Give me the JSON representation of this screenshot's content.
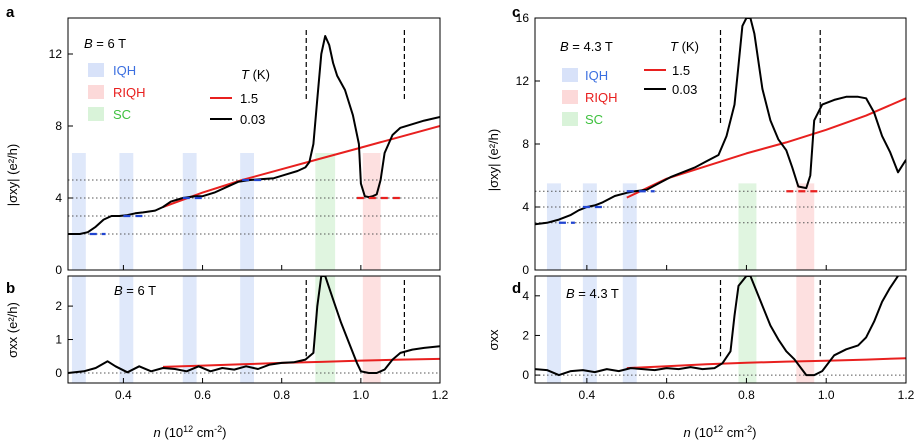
{
  "colors": {
    "iqh": "#3b6fe0",
    "riqh": "#f04040",
    "sc": "#3fc13f",
    "line_hot": "#e8201f",
    "line_cold": "#000000",
    "plateau_iqh": "#2044d0",
    "plateau_riqh": "#e8201f"
  },
  "legend": {
    "iqh": "IQH",
    "riqh": "RIQH",
    "sc": "SC",
    "temp_title_pre": "T",
    "temp_title_post": " (K)",
    "hot": "1.5",
    "cold": "0.03"
  },
  "shared": {
    "xlabel_pre": "n",
    "xlabel_unit": " (10",
    "xlabel_exp": "12",
    "xlabel_unit2": " cm",
    "xlabel_exp2": "-2",
    "xlabel_close": ")"
  },
  "chart_data": [
    {
      "id": "a",
      "panel_label": "a",
      "type": "line",
      "field_pre": "B",
      "field_value": " = 6 T",
      "ylabel": "|σxy| (e²/h)",
      "xlim": [
        0.26,
        1.2
      ],
      "ylim": [
        0,
        14
      ],
      "xticks": [
        "0.4",
        "0.6",
        "0.8",
        "1.0",
        "1.2"
      ],
      "xtick_values": [
        0.4,
        0.6,
        0.8,
        1.0,
        1.2
      ],
      "yticks": [
        "0",
        "4",
        "8",
        "12"
      ],
      "ytick_values": [
        0,
        4,
        8,
        12
      ],
      "dotted_lines": [
        2,
        3,
        4,
        5
      ],
      "dashed_x": [
        0.862,
        1.11
      ],
      "bands": [
        {
          "kind": "iqh",
          "x0": 0.27,
          "x1": 0.305
        },
        {
          "kind": "iqh",
          "x0": 0.39,
          "x1": 0.425
        },
        {
          "kind": "iqh",
          "x0": 0.55,
          "x1": 0.585
        },
        {
          "kind": "iqh",
          "x0": 0.695,
          "x1": 0.73
        },
        {
          "kind": "sc",
          "x0": 0.885,
          "x1": 0.935
        },
        {
          "kind": "riqh",
          "x0": 1.005,
          "x1": 1.05
        }
      ],
      "band_top": 6.5,
      "plateaus": [
        {
          "kind": "iqh",
          "x0": 0.315,
          "x1": 0.355,
          "y": 2
        },
        {
          "kind": "iqh",
          "x0": 0.4,
          "x1": 0.45,
          "y": 3
        },
        {
          "kind": "iqh",
          "x0": 0.55,
          "x1": 0.6,
          "y": 4
        },
        {
          "kind": "iqh",
          "x0": 0.7,
          "x1": 0.75,
          "y": 5
        },
        {
          "kind": "riqh",
          "x0": 0.99,
          "x1": 1.1,
          "y": 4
        }
      ],
      "series": [
        {
          "name": "1.5",
          "color": "hot",
          "x": [
            0.5,
            0.6,
            0.7,
            0.8,
            0.9,
            1.0,
            1.1,
            1.2
          ],
          "y": [
            3.5,
            4.3,
            5.0,
            5.6,
            6.2,
            6.8,
            7.4,
            8.0
          ]
        },
        {
          "name": "0.03",
          "color": "cold",
          "x": [
            0.26,
            0.29,
            0.31,
            0.33,
            0.35,
            0.37,
            0.39,
            0.41,
            0.43,
            0.45,
            0.48,
            0.5,
            0.52,
            0.55,
            0.58,
            0.6,
            0.63,
            0.66,
            0.69,
            0.72,
            0.75,
            0.78,
            0.81,
            0.84,
            0.86,
            0.87,
            0.88,
            0.89,
            0.9,
            0.91,
            0.92,
            0.93,
            0.94,
            0.96,
            0.98,
            0.995,
            1.0,
            1.01,
            1.02,
            1.03,
            1.04,
            1.05,
            1.06,
            1.08,
            1.1,
            1.13,
            1.16,
            1.2
          ],
          "y": [
            2.0,
            2.0,
            2.1,
            2.4,
            2.8,
            3.0,
            3.0,
            3.05,
            3.15,
            3.2,
            3.3,
            3.5,
            3.8,
            4.0,
            4.1,
            4.1,
            4.3,
            4.6,
            4.9,
            5.0,
            5.05,
            5.1,
            5.3,
            5.5,
            5.7,
            6.0,
            7.0,
            9.5,
            12.0,
            13.0,
            12.5,
            11.5,
            10.8,
            10.0,
            8.6,
            7.0,
            4.8,
            4.1,
            4.05,
            4.1,
            4.2,
            5.0,
            6.5,
            7.5,
            7.9,
            8.1,
            8.3,
            8.5
          ]
        }
      ]
    },
    {
      "id": "b",
      "panel_label": "b",
      "type": "line",
      "field_pre": "B",
      "field_value": " = 6 T",
      "ylabel": "σxx (e²/h)",
      "xlim": [
        0.26,
        1.2
      ],
      "ylim": [
        -0.3,
        2.9
      ],
      "xticks": [
        "0.4",
        "0.6",
        "0.8",
        "1.0",
        "1.2"
      ],
      "xtick_values": [
        0.4,
        0.6,
        0.8,
        1.0,
        1.2
      ],
      "yticks": [
        "0",
        "1",
        "2"
      ],
      "ytick_values": [
        0,
        1,
        2
      ],
      "dotted_lines": [
        0
      ],
      "dashed_x": [
        0.862,
        1.11
      ],
      "bands": [
        {
          "kind": "iqh",
          "x0": 0.27,
          "x1": 0.305
        },
        {
          "kind": "iqh",
          "x0": 0.39,
          "x1": 0.425
        },
        {
          "kind": "iqh",
          "x0": 0.55,
          "x1": 0.585
        },
        {
          "kind": "iqh",
          "x0": 0.695,
          "x1": 0.73
        },
        {
          "kind": "sc",
          "x0": 0.885,
          "x1": 0.935
        },
        {
          "kind": "riqh",
          "x0": 1.005,
          "x1": 1.05
        }
      ],
      "band_top": 2.9,
      "plateaus": [],
      "series": [
        {
          "name": "1.5",
          "color": "hot",
          "x": [
            0.5,
            0.6,
            0.7,
            0.8,
            0.9,
            1.0,
            1.1,
            1.2
          ],
          "y": [
            0.18,
            0.22,
            0.26,
            0.3,
            0.33,
            0.37,
            0.4,
            0.42
          ]
        },
        {
          "name": "0.03",
          "color": "cold",
          "x": [
            0.26,
            0.3,
            0.33,
            0.36,
            0.38,
            0.41,
            0.44,
            0.47,
            0.5,
            0.53,
            0.56,
            0.59,
            0.62,
            0.65,
            0.68,
            0.71,
            0.74,
            0.77,
            0.8,
            0.83,
            0.86,
            0.88,
            0.89,
            0.9,
            0.91,
            0.93,
            0.95,
            0.97,
            0.99,
            1.0,
            1.02,
            1.04,
            1.06,
            1.08,
            1.1,
            1.13,
            1.16,
            1.2
          ],
          "y": [
            0.0,
            0.05,
            0.15,
            0.35,
            0.2,
            0.02,
            0.2,
            0.05,
            0.15,
            0.12,
            0.05,
            0.2,
            0.05,
            0.15,
            0.1,
            0.2,
            0.12,
            0.25,
            0.3,
            0.32,
            0.4,
            0.6,
            2.0,
            2.9,
            2.9,
            2.2,
            1.5,
            0.9,
            0.3,
            0.05,
            0.0,
            0.0,
            0.1,
            0.4,
            0.6,
            0.7,
            0.75,
            0.8
          ]
        }
      ]
    },
    {
      "id": "c",
      "panel_label": "c",
      "type": "line",
      "field_pre": "B",
      "field_value": " = 4.3 T",
      "ylabel": "|σxy| (e²/h)",
      "xlim": [
        0.27,
        1.2
      ],
      "ylim": [
        0,
        16
      ],
      "xticks": [
        "0.4",
        "0.6",
        "0.8",
        "1.0",
        "1.2"
      ],
      "xtick_values": [
        0.4,
        0.6,
        0.8,
        1.0,
        1.2
      ],
      "yticks": [
        "0",
        "4",
        "8",
        "12",
        "16"
      ],
      "ytick_values": [
        0,
        4,
        8,
        12,
        16
      ],
      "dotted_lines": [
        3,
        4,
        5
      ],
      "dashed_x": [
        0.735,
        0.985
      ],
      "bands": [
        {
          "kind": "iqh",
          "x0": 0.3,
          "x1": 0.335
        },
        {
          "kind": "iqh",
          "x0": 0.39,
          "x1": 0.425
        },
        {
          "kind": "iqh",
          "x0": 0.49,
          "x1": 0.525
        },
        {
          "kind": "sc",
          "x0": 0.78,
          "x1": 0.825
        },
        {
          "kind": "riqh",
          "x0": 0.925,
          "x1": 0.97
        }
      ],
      "band_top": 5.5,
      "plateaus": [
        {
          "kind": "iqh",
          "x0": 0.33,
          "x1": 0.37,
          "y": 3
        },
        {
          "kind": "iqh",
          "x0": 0.39,
          "x1": 0.44,
          "y": 4
        },
        {
          "kind": "iqh",
          "x0": 0.5,
          "x1": 0.57,
          "y": 5
        },
        {
          "kind": "riqh",
          "x0": 0.9,
          "x1": 0.99,
          "y": 5
        }
      ],
      "series": [
        {
          "name": "1.5",
          "color": "hot",
          "x": [
            0.5,
            0.6,
            0.7,
            0.8,
            0.9,
            1.0,
            1.1,
            1.2
          ],
          "y": [
            4.6,
            5.8,
            6.6,
            7.4,
            8.1,
            8.9,
            9.8,
            10.9
          ]
        },
        {
          "name": "0.03",
          "color": "cold",
          "x": [
            0.27,
            0.3,
            0.33,
            0.36,
            0.38,
            0.4,
            0.42,
            0.44,
            0.47,
            0.5,
            0.52,
            0.55,
            0.58,
            0.61,
            0.64,
            0.67,
            0.7,
            0.73,
            0.75,
            0.77,
            0.78,
            0.79,
            0.8,
            0.81,
            0.82,
            0.84,
            0.86,
            0.88,
            0.9,
            0.915,
            0.93,
            0.95,
            0.96,
            0.97,
            0.99,
            1.02,
            1.05,
            1.08,
            1.1,
            1.12,
            1.14,
            1.16,
            1.18,
            1.2
          ],
          "y": [
            2.9,
            3.0,
            3.2,
            3.5,
            3.8,
            4.0,
            4.1,
            4.3,
            4.7,
            4.9,
            5.0,
            5.1,
            5.5,
            5.9,
            6.2,
            6.5,
            6.9,
            7.3,
            8.5,
            10.5,
            13.0,
            15.5,
            16.0,
            16.0,
            15.0,
            11.5,
            9.5,
            8.3,
            7.6,
            6.5,
            5.3,
            5.2,
            6.0,
            9.5,
            10.5,
            10.8,
            11.0,
            11.0,
            10.9,
            10.0,
            8.5,
            7.5,
            6.2,
            7.0
          ]
        }
      ]
    },
    {
      "id": "d",
      "panel_label": "d",
      "type": "line",
      "field_pre": "B",
      "field_value": " = 4.3 T",
      "ylabel": "σxx",
      "xlim": [
        0.27,
        1.2
      ],
      "ylim": [
        -0.4,
        5
      ],
      "xticks": [
        "0.4",
        "0.6",
        "0.8",
        "1.0",
        "1.2"
      ],
      "xtick_values": [
        0.4,
        0.6,
        0.8,
        1.0,
        1.2
      ],
      "yticks": [
        "0",
        "2",
        "4"
      ],
      "ytick_values": [
        0,
        2,
        4
      ],
      "dotted_lines": [
        0
      ],
      "dashed_x": [
        0.735,
        0.985
      ],
      "bands": [
        {
          "kind": "iqh",
          "x0": 0.3,
          "x1": 0.335
        },
        {
          "kind": "iqh",
          "x0": 0.39,
          "x1": 0.425
        },
        {
          "kind": "iqh",
          "x0": 0.49,
          "x1": 0.525
        },
        {
          "kind": "sc",
          "x0": 0.78,
          "x1": 0.825
        },
        {
          "kind": "riqh",
          "x0": 0.925,
          "x1": 0.97
        }
      ],
      "band_top": 5,
      "plateaus": [],
      "series": [
        {
          "name": "1.5",
          "color": "hot",
          "x": [
            0.5,
            0.6,
            0.7,
            0.8,
            0.9,
            1.0,
            1.1,
            1.2
          ],
          "y": [
            0.35,
            0.45,
            0.55,
            0.62,
            0.68,
            0.72,
            0.78,
            0.85
          ]
        },
        {
          "name": "0.03",
          "color": "cold",
          "x": [
            0.27,
            0.3,
            0.33,
            0.36,
            0.39,
            0.42,
            0.45,
            0.48,
            0.51,
            0.54,
            0.57,
            0.6,
            0.63,
            0.66,
            0.69,
            0.72,
            0.74,
            0.76,
            0.77,
            0.78,
            0.8,
            0.81,
            0.82,
            0.84,
            0.86,
            0.88,
            0.9,
            0.92,
            0.95,
            0.97,
            0.99,
            1.02,
            1.05,
            1.08,
            1.1,
            1.12,
            1.14,
            1.16,
            1.18
          ],
          "y": [
            0.3,
            0.25,
            0.0,
            0.2,
            0.25,
            0.15,
            0.3,
            0.2,
            0.35,
            0.3,
            0.25,
            0.35,
            0.3,
            0.4,
            0.3,
            0.35,
            0.6,
            1.2,
            3.0,
            4.5,
            5.0,
            5.0,
            4.5,
            3.5,
            2.5,
            1.8,
            1.2,
            0.8,
            0.0,
            0.0,
            0.2,
            1.0,
            1.3,
            1.5,
            1.9,
            2.7,
            3.7,
            4.4,
            5.0
          ]
        }
      ]
    }
  ]
}
